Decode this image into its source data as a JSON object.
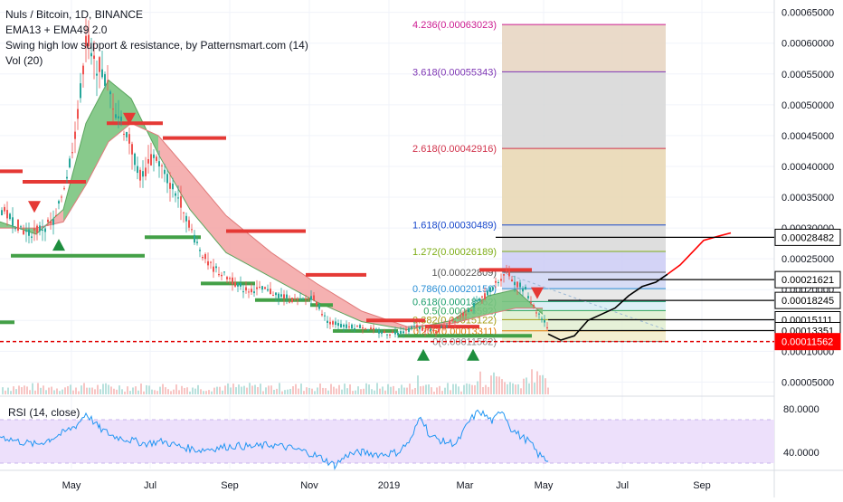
{
  "legend": {
    "symbol": "Nuls / Bitcoin, 1D, BINANCE",
    "ema": "EMA13 + EMA49 2.0",
    "swing": "Swing high low support & resistance, by Patternsmart.com (14)",
    "vol": "Vol (20)",
    "rsi": "RSI (14, close)"
  },
  "colors": {
    "bull": "#26a69a",
    "bear": "#ef5350",
    "ema_fill_up": "#7bc47f",
    "ema_fill_down": "#f4a9a9",
    "support": "#43a047",
    "resistance": "#e53935",
    "rsi_band": "#ede0fb",
    "rsi_line": "#2196f3",
    "price_tag": "#ff0000"
  },
  "chart_data": [
    {
      "type": "line",
      "title": "Nuls / Bitcoin, 1D, BINANCE",
      "x_ticks": [
        "May",
        "Jul",
        "Sep",
        "Nov",
        "2019",
        "Mar",
        "May",
        "Jul",
        "Sep"
      ],
      "y_ticks": [
        "0.00065000",
        "0.00060000",
        "0.00055000",
        "0.00050000",
        "0.00045000",
        "0.00040000",
        "0.00035000",
        "0.00030000",
        "0.00025000",
        "0.00020000",
        "0.00015000",
        "0.00010000",
        "0.00005000"
      ],
      "ylim": [
        3e-05,
        0.00067
      ],
      "price_series": [
        [
          0,
          0.00033
        ],
        [
          15,
          0.00031
        ],
        [
          30,
          0.00029
        ],
        [
          45,
          0.0003
        ],
        [
          60,
          0.00031
        ],
        [
          75,
          0.0004
        ],
        [
          85,
          0.00048
        ],
        [
          95,
          0.00062
        ],
        [
          100,
          0.00057
        ],
        [
          110,
          0.00056
        ],
        [
          125,
          0.0005
        ],
        [
          140,
          0.00045
        ],
        [
          155,
          0.00038
        ],
        [
          170,
          0.00042
        ],
        [
          180,
          0.00039
        ],
        [
          200,
          0.00034
        ],
        [
          215,
          0.00028
        ],
        [
          230,
          0.00024
        ],
        [
          250,
          0.00022
        ],
        [
          270,
          0.0002
        ],
        [
          290,
          0.0002
        ],
        [
          310,
          0.00019
        ],
        [
          330,
          0.00018
        ],
        [
          345,
          0.00019
        ],
        [
          360,
          0.00015
        ],
        [
          380,
          0.00014
        ],
        [
          400,
          0.00014
        ],
        [
          420,
          0.00013
        ],
        [
          440,
          0.00013
        ],
        [
          460,
          0.00014
        ],
        [
          480,
          0.00013
        ],
        [
          500,
          0.00015
        ],
        [
          520,
          0.00017
        ],
        [
          535,
          0.00019
        ],
        [
          548,
          0.00021
        ],
        [
          558,
          0.00023
        ],
        [
          570,
          0.00021
        ],
        [
          580,
          0.0002
        ],
        [
          590,
          0.00017
        ],
        [
          600,
          0.00015
        ],
        [
          606,
          0.000135
        ]
      ],
      "ema_band_fast": [
        [
          0,
          0.00031
        ],
        [
          40,
          0.00029
        ],
        [
          70,
          0.00033
        ],
        [
          95,
          0.00047
        ],
        [
          120,
          0.00054
        ],
        [
          145,
          0.00051
        ],
        [
          175,
          0.00042
        ],
        [
          210,
          0.00033
        ],
        [
          250,
          0.00026
        ],
        [
          300,
          0.00022
        ],
        [
          350,
          0.00018
        ],
        [
          400,
          0.000148
        ],
        [
          450,
          0.000135
        ],
        [
          500,
          0.00015
        ],
        [
          540,
          0.00019
        ],
        [
          570,
          0.0002
        ],
        [
          600,
          0.00016
        ]
      ],
      "ema_band_slow": [
        [
          0,
          0.0003
        ],
        [
          40,
          0.0003
        ],
        [
          70,
          0.00031
        ],
        [
          95,
          0.00037
        ],
        [
          120,
          0.00044
        ],
        [
          145,
          0.00047
        ],
        [
          175,
          0.00045
        ],
        [
          210,
          0.00039
        ],
        [
          250,
          0.00032
        ],
        [
          300,
          0.00026
        ],
        [
          350,
          0.00021
        ],
        [
          400,
          0.000165
        ],
        [
          450,
          0.00014
        ],
        [
          500,
          0.000145
        ],
        [
          540,
          0.00016
        ],
        [
          570,
          0.00017
        ],
        [
          600,
          0.00017
        ]
      ],
      "support_levels": [
        {
          "x": [
            12,
            160
          ],
          "y": 0.000255
        },
        {
          "x": [
            160,
            222
          ],
          "y": 0.000285
        },
        {
          "x": [
            222,
            282
          ],
          "y": 0.00021
        },
        {
          "x": [
            282,
            343
          ],
          "y": 0.000183
        },
        {
          "x": [
            343,
            368
          ],
          "y": 0.000175
        },
        {
          "x": [
            368,
            440
          ],
          "y": 0.000133
        },
        {
          "x": [
            440,
            530
          ],
          "y": 0.000125
        },
        {
          "x": [
            530,
            588
          ],
          "y": 0.000125
        },
        {
          "x": [
            0,
            16
          ],
          "y": 0.000147
        }
      ],
      "resistance_levels": [
        {
          "x": [
            0,
            25
          ],
          "y": 0.000392
        },
        {
          "x": [
            25,
            95
          ],
          "y": 0.000375
        },
        {
          "x": [
            118,
            180
          ],
          "y": 0.00047
        },
        {
          "x": [
            180,
            250
          ],
          "y": 0.000446
        },
        {
          "x": [
            250,
            338
          ],
          "y": 0.000295
        },
        {
          "x": [
            338,
            405
          ],
          "y": 0.000224
        },
        {
          "x": [
            405,
            470
          ],
          "y": 0.00015
        },
        {
          "x": [
            470,
            530
          ],
          "y": 0.00014
        },
        {
          "x": [
            530,
            588
          ],
          "y": 0.000232
        }
      ],
      "fibonacci": [
        {
          "label": "4.236(0.00063023)",
          "value": 0.00063023,
          "color": "#cc1c91"
        },
        {
          "label": "3.618(0.00055343)",
          "value": 0.00055343,
          "color": "#7e36b4"
        },
        {
          "label": "2.618(0.00042916)",
          "value": 0.00042916,
          "color": "#d1324b"
        },
        {
          "label": "1.618(0.00030489)",
          "value": 0.00030489,
          "color": "#1848cc"
        },
        {
          "label": "1.272(0.00026189)",
          "value": 0.00026189,
          "color": "#7dac15"
        },
        {
          "label": "1(0.00022809)",
          "value": 0.00022809,
          "color": "#555555"
        },
        {
          "label": "0.786(0.00020150)",
          "value": 0.0002015,
          "color": "#2a8fd6"
        },
        {
          "label": "0.618(0.00018062)",
          "value": 0.00018062,
          "color": "#1b9d6b"
        },
        {
          "label": "0.5(0.00016592)",
          "value": 0.00016592,
          "color": "#2aa35a"
        },
        {
          "label": "0.382(0.00015122)",
          "value": 0.00015122,
          "color": "#a39c12"
        },
        {
          "label": "0.236(0.00013311)",
          "value": 0.00013311,
          "color": "#e07b00"
        },
        {
          "label": "0(0.00011562)",
          "value": 0.00011562,
          "color": "#8a8a8a"
        }
      ],
      "projection_black": [
        [
          606,
          0.000128
        ],
        [
          620,
          0.000118
        ],
        [
          635,
          0.000125
        ],
        [
          650,
          0.00015
        ],
        [
          665,
          0.00016
        ],
        [
          680,
          0.00017
        ],
        [
          695,
          0.00019
        ],
        [
          710,
          0.000205
        ],
        [
          725,
          0.000212
        ],
        [
          738,
          0.000225
        ]
      ],
      "projection_red": [
        [
          738,
          0.000225
        ],
        [
          752,
          0.00024
        ],
        [
          765,
          0.00026
        ],
        [
          778,
          0.00028
        ],
        [
          795,
          0.000287
        ],
        [
          808,
          0.000292
        ]
      ],
      "price_labels": [
        {
          "text": "0.00028482",
          "value": 0.00028482,
          "from_x": 548,
          "style": "black"
        },
        {
          "text": "0.00021621",
          "value": 0.00021621,
          "from_x": 606,
          "style": "black"
        },
        {
          "text": "0.00018245",
          "value": 0.00018245,
          "from_x": 606,
          "style": "black"
        },
        {
          "text": "0.00015111",
          "value": 0.00015111,
          "from_x": 606,
          "style": "black"
        },
        {
          "text": "0.00013351",
          "value": 0.00013351,
          "from_x": 606,
          "style": "black"
        },
        {
          "text": "0.00011562",
          "value": 0.00011562,
          "from_x": 0,
          "style": "red-dashed"
        }
      ],
      "signals": [
        {
          "type": "sell",
          "x": 38,
          "value": 0.000335
        },
        {
          "type": "buy",
          "x": 65,
          "value": 0.000272
        },
        {
          "type": "sell",
          "x": 143,
          "value": 0.000478
        },
        {
          "type": "sell",
          "x": 594,
          "value": 0.000195
        },
        {
          "type": "buy",
          "x": 468,
          "value": 9.35e-05
        },
        {
          "type": "buy",
          "x": 523,
          "value": 9.35e-05
        }
      ]
    },
    {
      "type": "line",
      "title": "RSI (14, close)",
      "y_ticks": [
        "80.0000",
        "40.0000"
      ],
      "ylim": [
        25,
        90
      ],
      "band": [
        30,
        70
      ],
      "values": [
        [
          0,
          55
        ],
        [
          20,
          50
        ],
        [
          40,
          47
        ],
        [
          55,
          52
        ],
        [
          70,
          58
        ],
        [
          85,
          65
        ],
        [
          95,
          76
        ],
        [
          110,
          62
        ],
        [
          125,
          55
        ],
        [
          140,
          52
        ],
        [
          160,
          48
        ],
        [
          180,
          50
        ],
        [
          200,
          45
        ],
        [
          220,
          42
        ],
        [
          240,
          44
        ],
        [
          260,
          46
        ],
        [
          280,
          45
        ],
        [
          300,
          47
        ],
        [
          320,
          44
        ],
        [
          340,
          40
        ],
        [
          355,
          35
        ],
        [
          370,
          28
        ],
        [
          385,
          38
        ],
        [
          400,
          40
        ],
        [
          420,
          38
        ],
        [
          440,
          40
        ],
        [
          455,
          52
        ],
        [
          465,
          75
        ],
        [
          475,
          55
        ],
        [
          490,
          50
        ],
        [
          505,
          48
        ],
        [
          520,
          70
        ],
        [
          530,
          78
        ],
        [
          545,
          68
        ],
        [
          555,
          80
        ],
        [
          565,
          62
        ],
        [
          575,
          55
        ],
        [
          585,
          50
        ],
        [
          595,
          38
        ],
        [
          606,
          32
        ]
      ]
    }
  ]
}
